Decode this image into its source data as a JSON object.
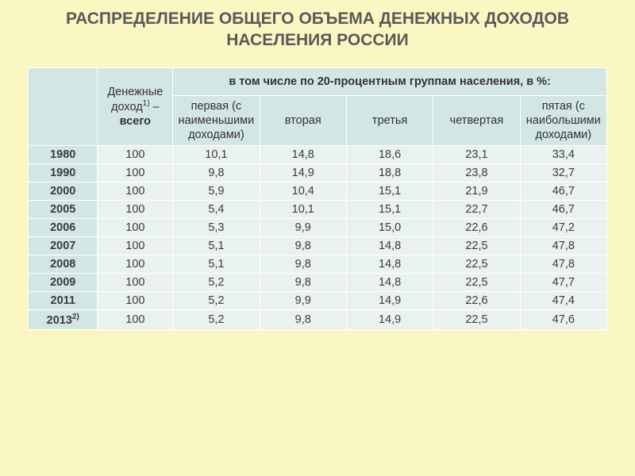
{
  "title": "РАСПРЕДЕЛЕНИЕ ОБЩЕГО ОБЪЕМА ДЕНЕЖНЫХ ДОХОДОВ НАСЕЛЕНИЯ РОССИИ",
  "table": {
    "header": {
      "total_label_1": "Денежные доход",
      "total_sup": "1)",
      "total_dash": " – ",
      "total_bold": "всего",
      "span_label": "в том числе по 20-процентным группам населения, в %:",
      "groups": [
        "первая (с наименьшими доходами)",
        "вторая",
        "третья",
        "четвертая",
        "пятая (с наибольшими доходами)"
      ]
    },
    "rows": [
      {
        "year": "1980",
        "sup": "",
        "total": "100",
        "g": [
          "10,1",
          "14,8",
          "18,6",
          "23,1",
          "33,4"
        ]
      },
      {
        "year": "1990",
        "sup": "",
        "total": "100",
        "g": [
          "9,8",
          "14,9",
          "18,8",
          "23,8",
          "32,7"
        ]
      },
      {
        "year": "2000",
        "sup": "",
        "total": "100",
        "g": [
          "5,9",
          "10,4",
          "15,1",
          "21,9",
          "46,7"
        ]
      },
      {
        "year": "2005",
        "sup": "",
        "total": "100",
        "g": [
          "5,4",
          "10,1",
          "15,1",
          "22,7",
          "46,7"
        ]
      },
      {
        "year": "2006",
        "sup": "",
        "total": "100",
        "g": [
          "5,3",
          "9,9",
          "15,0",
          "22,6",
          "47,2"
        ]
      },
      {
        "year": "2007",
        "sup": "",
        "total": "100",
        "g": [
          "5,1",
          "9,8",
          "14,8",
          "22,5",
          "47,8"
        ]
      },
      {
        "year": "2008",
        "sup": "",
        "total": "100",
        "g": [
          "5,1",
          "9,8",
          "14,8",
          "22,5",
          "47,8"
        ]
      },
      {
        "year": "2009",
        "sup": "",
        "total": "100",
        "g": [
          "5,2",
          "9,8",
          "14,8",
          "22,5",
          "47,7"
        ]
      },
      {
        "year": "2011",
        "sup": "",
        "total": "100",
        "g": [
          "5,2",
          "9,9",
          "14,9",
          "22,6",
          "47,4"
        ]
      },
      {
        "year": "2013",
        "sup": "2)",
        "total": "100",
        "g": [
          "5,2",
          "9,8",
          "14,9",
          "22,5",
          "47,6"
        ]
      }
    ]
  },
  "style": {
    "page_bg": "#fbf7c3",
    "header_bg": "#d2e6e3",
    "cell_bg": "#eaf2f1",
    "title_color": "#595959",
    "text_color": "#3b3b3b",
    "title_fontsize": 21,
    "cell_fontsize": 14.5,
    "font_family": "Arial"
  }
}
